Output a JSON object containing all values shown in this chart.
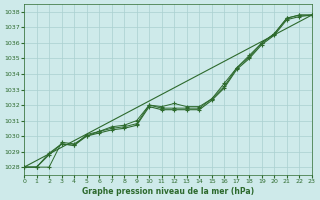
{
  "xlabel": "Graphe pression niveau de la mer (hPa)",
  "ylim": [
    1027.5,
    1038.5
  ],
  "xlim": [
    0,
    23
  ],
  "xticks": [
    0,
    1,
    2,
    3,
    4,
    5,
    6,
    7,
    8,
    9,
    10,
    11,
    12,
    13,
    14,
    15,
    16,
    17,
    18,
    19,
    20,
    21,
    22,
    23
  ],
  "yticks": [
    1028,
    1029,
    1030,
    1031,
    1032,
    1033,
    1034,
    1035,
    1036,
    1037,
    1038
  ],
  "bg_color": "#ceeaea",
  "grid_color": "#aad0d0",
  "line_color": "#2d6a2d",
  "line1_x": [
    0,
    1,
    2,
    3,
    4,
    5,
    6,
    7,
    8,
    9,
    10,
    11,
    12,
    13,
    14,
    15,
    16,
    17,
    18,
    19,
    20,
    21,
    22,
    23
  ],
  "line1_y": [
    1028.0,
    1028.0,
    1028.8,
    1029.5,
    1029.4,
    1030.0,
    1030.2,
    1030.4,
    1030.5,
    1030.7,
    1031.9,
    1031.7,
    1031.7,
    1031.7,
    1031.7,
    1032.3,
    1033.1,
    1034.3,
    1035.0,
    1035.9,
    1036.5,
    1037.5,
    1037.7,
    1037.8
  ],
  "line2_x": [
    0,
    1,
    2,
    3,
    4,
    5,
    6,
    7,
    8,
    9,
    10,
    11,
    12,
    13,
    14,
    15,
    16,
    17,
    18,
    19,
    20,
    21,
    22,
    23
  ],
  "line2_y": [
    1028.0,
    1028.0,
    1028.9,
    1029.5,
    1029.4,
    1030.1,
    1030.3,
    1030.5,
    1030.6,
    1030.8,
    1032.0,
    1031.8,
    1031.8,
    1031.8,
    1031.8,
    1032.4,
    1033.2,
    1034.4,
    1035.1,
    1036.0,
    1036.6,
    1037.6,
    1037.8,
    1037.8
  ],
  "line3_x": [
    0,
    1,
    2,
    3,
    4,
    5,
    6,
    7,
    8,
    9,
    10,
    11,
    12,
    13,
    14,
    15,
    16,
    17,
    18,
    19,
    20,
    21,
    22,
    23
  ],
  "line3_y": [
    1028.0,
    1028.0,
    1028.0,
    1029.6,
    1029.5,
    1030.0,
    1030.3,
    1030.6,
    1030.7,
    1031.0,
    1032.0,
    1031.9,
    1032.1,
    1031.9,
    1031.9,
    1032.4,
    1033.4,
    1034.4,
    1035.2,
    1036.0,
    1036.6,
    1037.6,
    1037.8,
    1037.8
  ],
  "line4_x": [
    0,
    23
  ],
  "line4_y": [
    1028.0,
    1037.8
  ]
}
